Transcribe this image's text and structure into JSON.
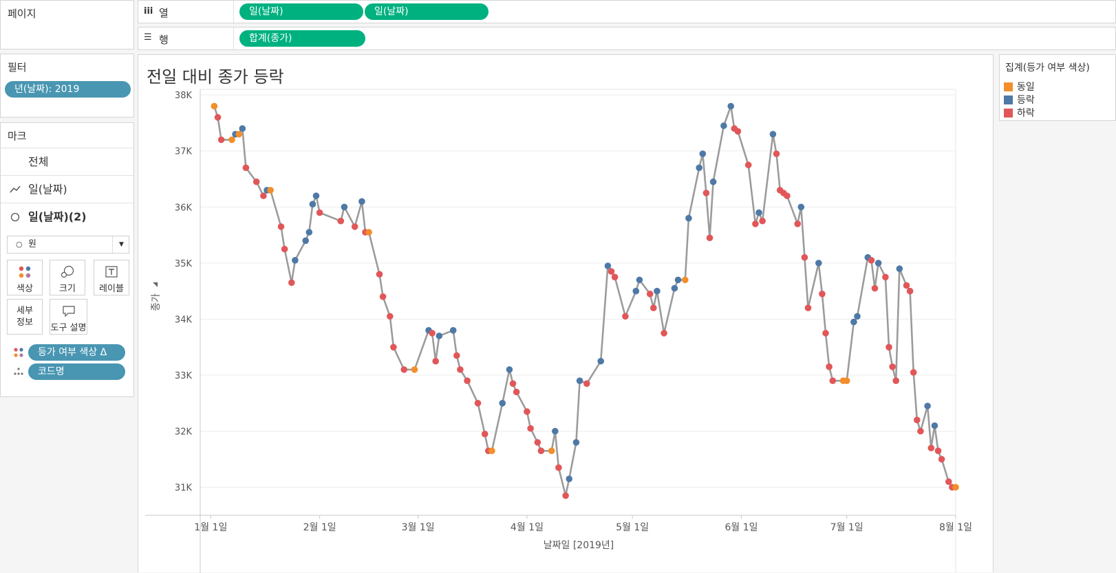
{
  "shelves": {
    "pages_label": "페이지",
    "columns_icon": "iii",
    "columns_label": "열",
    "columns_pills": [
      "일(날짜)",
      "일(날짜)"
    ],
    "rows_icon": "☰",
    "rows_label": "행",
    "rows_pills": [
      "합계(종가)"
    ]
  },
  "filters": {
    "label": "필터",
    "pill": "년(날짜): 2019"
  },
  "marks": {
    "label": "마크",
    "all": "전체",
    "line_layer": "일(날짜)",
    "circle_layer": "일(날짜)(2)",
    "mark_type": "원",
    "buttons": {
      "color": "색상",
      "size": "크기",
      "label": "레이블",
      "detail_1": "세부",
      "detail_2": "정보",
      "tooltip": "도구 설명"
    },
    "pills": [
      "등가 여부 색상 Δ",
      "코드명"
    ]
  },
  "legend": {
    "title": "집계(등가 여부 색상)",
    "items": [
      {
        "label": "동일",
        "color": "#f28e2b"
      },
      {
        "label": "등락",
        "color": "#4e79a7"
      },
      {
        "label": "하락",
        "color": "#e15759"
      }
    ]
  },
  "chart_data": {
    "type": "line",
    "title": "전일 대비 종가 등락",
    "xlabel": "날짜일 [2019년]",
    "ylabel": "종가",
    "x_tick_labels": [
      "1월 1일",
      "2월 1일",
      "3월 1일",
      "4월 1일",
      "5월 1일",
      "6월 1일",
      "7월 1일",
      "8월 1일"
    ],
    "y_tick_labels": [
      "31K",
      "32K",
      "33K",
      "34K",
      "35K",
      "36K",
      "37K",
      "38K"
    ],
    "y_ticks": [
      31000,
      32000,
      33000,
      34000,
      35000,
      36000,
      37000,
      38000
    ],
    "ylim": [
      30500,
      38100
    ],
    "xlim": [
      "2018-12-29",
      "2019-08-01"
    ],
    "line_color": "#9b9b9b",
    "categories": {
      "same": "동일",
      "up": "등락",
      "down": "하락"
    },
    "points": [
      [
        "2019-01-02",
        37800,
        "same"
      ],
      [
        "2019-01-03",
        37600,
        "down"
      ],
      [
        "2019-01-04",
        37200,
        "down"
      ],
      [
        "2019-01-07",
        37200,
        "same"
      ],
      [
        "2019-01-08",
        37300,
        "up"
      ],
      [
        "2019-01-09",
        37300,
        "same"
      ],
      [
        "2019-01-10",
        37400,
        "up"
      ],
      [
        "2019-01-11",
        36700,
        "down"
      ],
      [
        "2019-01-14",
        36450,
        "down"
      ],
      [
        "2019-01-16",
        36200,
        "down"
      ],
      [
        "2019-01-17",
        36300,
        "up"
      ],
      [
        "2019-01-18",
        36300,
        "same"
      ],
      [
        "2019-01-21",
        35650,
        "down"
      ],
      [
        "2019-01-22",
        35250,
        "down"
      ],
      [
        "2019-01-24",
        34650,
        "down"
      ],
      [
        "2019-01-25",
        35050,
        "up"
      ],
      [
        "2019-01-28",
        35400,
        "up"
      ],
      [
        "2019-01-29",
        35550,
        "up"
      ],
      [
        "2019-01-30",
        36050,
        "up"
      ],
      [
        "2019-01-31",
        36200,
        "up"
      ],
      [
        "2019-02-01",
        35900,
        "down"
      ],
      [
        "2019-02-07",
        35750,
        "down"
      ],
      [
        "2019-02-08",
        36000,
        "up"
      ],
      [
        "2019-02-11",
        35650,
        "down"
      ],
      [
        "2019-02-13",
        36100,
        "up"
      ],
      [
        "2019-02-14",
        35550,
        "down"
      ],
      [
        "2019-02-15",
        35550,
        "same"
      ],
      [
        "2019-02-18",
        34800,
        "down"
      ],
      [
        "2019-02-19",
        34400,
        "down"
      ],
      [
        "2019-02-21",
        34050,
        "down"
      ],
      [
        "2019-02-22",
        33500,
        "down"
      ],
      [
        "2019-02-25",
        33100,
        "down"
      ],
      [
        "2019-02-28",
        33100,
        "same"
      ],
      [
        "2019-03-04",
        33800,
        "up"
      ],
      [
        "2019-03-05",
        33750,
        "down"
      ],
      [
        "2019-03-06",
        33250,
        "down"
      ],
      [
        "2019-03-07",
        33700,
        "up"
      ],
      [
        "2019-03-11",
        33800,
        "up"
      ],
      [
        "2019-03-12",
        33350,
        "down"
      ],
      [
        "2019-03-13",
        33100,
        "down"
      ],
      [
        "2019-03-15",
        32900,
        "down"
      ],
      [
        "2019-03-18",
        32500,
        "down"
      ],
      [
        "2019-03-20",
        31950,
        "down"
      ],
      [
        "2019-03-21",
        31650,
        "down"
      ],
      [
        "2019-03-22",
        31650,
        "same"
      ],
      [
        "2019-03-25",
        32500,
        "up"
      ],
      [
        "2019-03-27",
        33100,
        "up"
      ],
      [
        "2019-03-28",
        32850,
        "down"
      ],
      [
        "2019-03-29",
        32700,
        "down"
      ],
      [
        "2019-04-01",
        32350,
        "down"
      ],
      [
        "2019-04-02",
        32050,
        "down"
      ],
      [
        "2019-04-04",
        31800,
        "down"
      ],
      [
        "2019-04-05",
        31650,
        "down"
      ],
      [
        "2019-04-08",
        31650,
        "same"
      ],
      [
        "2019-04-09",
        32000,
        "up"
      ],
      [
        "2019-04-10",
        31350,
        "down"
      ],
      [
        "2019-04-12",
        30850,
        "down"
      ],
      [
        "2019-04-13",
        31150,
        "up"
      ],
      [
        "2019-04-15",
        31800,
        "up"
      ],
      [
        "2019-04-16",
        32900,
        "up"
      ],
      [
        "2019-04-18",
        32850,
        "down"
      ],
      [
        "2019-04-22",
        33250,
        "up"
      ],
      [
        "2019-04-24",
        34950,
        "up"
      ],
      [
        "2019-04-25",
        34850,
        "down"
      ],
      [
        "2019-04-26",
        34750,
        "down"
      ],
      [
        "2019-04-29",
        34050,
        "down"
      ],
      [
        "2019-05-02",
        34500,
        "up"
      ],
      [
        "2019-05-03",
        34700,
        "up"
      ],
      [
        "2019-05-06",
        34450,
        "down"
      ],
      [
        "2019-05-07",
        34200,
        "down"
      ],
      [
        "2019-05-08",
        34500,
        "up"
      ],
      [
        "2019-05-10",
        33750,
        "down"
      ],
      [
        "2019-05-13",
        34550,
        "up"
      ],
      [
        "2019-05-14",
        34700,
        "up"
      ],
      [
        "2019-05-16",
        34700,
        "same"
      ],
      [
        "2019-05-17",
        35800,
        "up"
      ],
      [
        "2019-05-20",
        36700,
        "up"
      ],
      [
        "2019-05-21",
        36950,
        "up"
      ],
      [
        "2019-05-22",
        36250,
        "down"
      ],
      [
        "2019-05-23",
        35450,
        "down"
      ],
      [
        "2019-05-24",
        36450,
        "up"
      ],
      [
        "2019-05-27",
        37450,
        "up"
      ],
      [
        "2019-05-29",
        37800,
        "up"
      ],
      [
        "2019-05-30",
        37400,
        "down"
      ],
      [
        "2019-05-31",
        37350,
        "down"
      ],
      [
        "2019-06-03",
        36750,
        "down"
      ],
      [
        "2019-06-05",
        35700,
        "down"
      ],
      [
        "2019-06-06",
        35900,
        "up"
      ],
      [
        "2019-06-07",
        35750,
        "down"
      ],
      [
        "2019-06-10",
        37300,
        "up"
      ],
      [
        "2019-06-11",
        36950,
        "down"
      ],
      [
        "2019-06-12",
        36300,
        "down"
      ],
      [
        "2019-06-13",
        36250,
        "down"
      ],
      [
        "2019-06-14",
        36200,
        "down"
      ],
      [
        "2019-06-17",
        35700,
        "down"
      ],
      [
        "2019-06-18",
        36000,
        "up"
      ],
      [
        "2019-06-19",
        35100,
        "down"
      ],
      [
        "2019-06-20",
        34200,
        "down"
      ],
      [
        "2019-06-23",
        35000,
        "up"
      ],
      [
        "2019-06-24",
        34450,
        "down"
      ],
      [
        "2019-06-25",
        33750,
        "down"
      ],
      [
        "2019-06-26",
        33150,
        "down"
      ],
      [
        "2019-06-27",
        32900,
        "down"
      ],
      [
        "2019-06-30",
        32900,
        "same"
      ],
      [
        "2019-07-01",
        32900,
        "same"
      ],
      [
        "2019-07-03",
        33950,
        "up"
      ],
      [
        "2019-07-04",
        34050,
        "up"
      ],
      [
        "2019-07-07",
        35100,
        "up"
      ],
      [
        "2019-07-08",
        35050,
        "down"
      ],
      [
        "2019-07-09",
        34550,
        "down"
      ],
      [
        "2019-07-10",
        35000,
        "up"
      ],
      [
        "2019-07-12",
        34750,
        "down"
      ],
      [
        "2019-07-13",
        33500,
        "down"
      ],
      [
        "2019-07-14",
        33150,
        "down"
      ],
      [
        "2019-07-15",
        32900,
        "down"
      ],
      [
        "2019-07-16",
        34900,
        "up"
      ],
      [
        "2019-07-18",
        34600,
        "down"
      ],
      [
        "2019-07-19",
        34500,
        "down"
      ],
      [
        "2019-07-20",
        33050,
        "down"
      ],
      [
        "2019-07-21",
        32200,
        "down"
      ],
      [
        "2019-07-22",
        32000,
        "down"
      ],
      [
        "2019-07-24",
        32450,
        "up"
      ],
      [
        "2019-07-25",
        31700,
        "down"
      ],
      [
        "2019-07-26",
        32100,
        "up"
      ],
      [
        "2019-07-27",
        31650,
        "down"
      ],
      [
        "2019-07-28",
        31500,
        "down"
      ],
      [
        "2019-07-30",
        31100,
        "down"
      ],
      [
        "2019-07-31",
        31000,
        "down"
      ],
      [
        "2019-08-01",
        31000,
        "same"
      ]
    ]
  }
}
